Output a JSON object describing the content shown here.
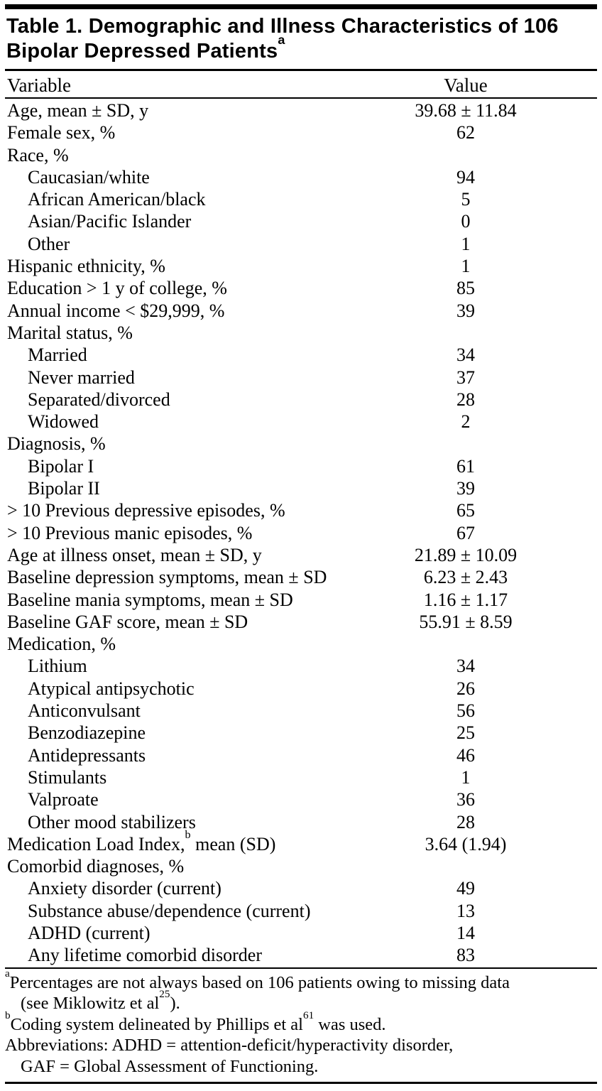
{
  "table": {
    "title": "Table 1. Demographic and Illness Characteristics of 106 Bipolar Depressed Patients",
    "title_sup": "a",
    "header": {
      "variable": "Variable",
      "value": "Value"
    },
    "rows": [
      {
        "label": "Age, mean ± SD, y",
        "value": "39.68 ± 11.84",
        "indent": 0
      },
      {
        "label": "Female sex, %",
        "value": "62",
        "indent": 0
      },
      {
        "label": "Race, %",
        "value": "",
        "indent": 0
      },
      {
        "label": "Caucasian/white",
        "value": "94",
        "indent": 1
      },
      {
        "label": "African American/black",
        "value": "5",
        "indent": 1
      },
      {
        "label": "Asian/Pacific Islander",
        "value": "0",
        "indent": 1
      },
      {
        "label": "Other",
        "value": "1",
        "indent": 1
      },
      {
        "label": "Hispanic ethnicity, %",
        "value": "1",
        "indent": 0
      },
      {
        "label": "Education > 1 y of college, %",
        "value": "85",
        "indent": 0
      },
      {
        "label": "Annual income < $29,999, %",
        "value": "39",
        "indent": 0
      },
      {
        "label": "Marital status, %",
        "value": "",
        "indent": 0
      },
      {
        "label": "Married",
        "value": "34",
        "indent": 1
      },
      {
        "label": "Never married",
        "value": "37",
        "indent": 1
      },
      {
        "label": "Separated/divorced",
        "value": "28",
        "indent": 1
      },
      {
        "label": "Widowed",
        "value": "2",
        "indent": 1
      },
      {
        "label": "Diagnosis, %",
        "value": "",
        "indent": 0
      },
      {
        "label": "Bipolar I",
        "value": "61",
        "indent": 1
      },
      {
        "label": "Bipolar II",
        "value": "39",
        "indent": 1
      },
      {
        "label": "> 10 Previous depressive episodes, %",
        "value": "65",
        "indent": 0
      },
      {
        "label": "> 10 Previous manic episodes, %",
        "value": "67",
        "indent": 0
      },
      {
        "label": "Age at illness onset, mean ± SD, y",
        "value": "21.89 ± 10.09",
        "indent": 0
      },
      {
        "label": "Baseline depression symptoms, mean ± SD",
        "value": "6.23 ± 2.43",
        "indent": 0
      },
      {
        "label": "Baseline mania symptoms, mean ± SD",
        "value": "1.16 ± 1.17",
        "indent": 0
      },
      {
        "label": "Baseline GAF score, mean ± SD",
        "value": "55.91 ± 8.59",
        "indent": 0
      },
      {
        "label": "Medication, %",
        "value": "",
        "indent": 0
      },
      {
        "label": "Lithium",
        "value": "34",
        "indent": 1
      },
      {
        "label": "Atypical antipsychotic",
        "value": "26",
        "indent": 1
      },
      {
        "label": "Anticonvulsant",
        "value": "56",
        "indent": 1
      },
      {
        "label": "Benzodiazepine",
        "value": "25",
        "indent": 1
      },
      {
        "label": "Antidepressants",
        "value": "46",
        "indent": 1
      },
      {
        "label": "Stimulants",
        "value": "1",
        "indent": 1
      },
      {
        "label": "Valproate",
        "value": "36",
        "indent": 1
      },
      {
        "label": "Other mood stabilizers",
        "value": "28",
        "indent": 1
      },
      {
        "label_segments": [
          {
            "t": "Medication Load Index,"
          },
          {
            "sup": "b"
          },
          {
            "t": " mean (SD)"
          }
        ],
        "value": "3.64 (1.94)",
        "indent": 0
      },
      {
        "label": "Comorbid diagnoses, %",
        "value": "",
        "indent": 0
      },
      {
        "label": "Anxiety disorder (current)",
        "value": "49",
        "indent": 1
      },
      {
        "label": "Substance abuse/dependence (current)",
        "value": "13",
        "indent": 1
      },
      {
        "label": "ADHD (current)",
        "value": "14",
        "indent": 1
      },
      {
        "label": "Any lifetime comorbid disorder",
        "value": "83",
        "indent": 1
      }
    ],
    "footnotes": [
      {
        "segments": [
          {
            "sup": "a"
          },
          {
            "t": "Percentages are not always based on 106 patients owing to missing data"
          },
          {
            "br": true
          },
          {
            "t": "(see Miklowitz et al"
          },
          {
            "sup": "25"
          },
          {
            "t": ")."
          }
        ]
      },
      {
        "segments": [
          {
            "sup": "b"
          },
          {
            "t": "Coding system delineated by Phillips et al"
          },
          {
            "sup": "61"
          },
          {
            "t": " was used."
          }
        ]
      },
      {
        "segments": [
          {
            "t": "Abbreviations: ADHD = attention-deficit/hyperactivity disorder,"
          },
          {
            "br": true
          },
          {
            "t": "GAF = Global Assessment of Functioning."
          }
        ]
      }
    ]
  }
}
